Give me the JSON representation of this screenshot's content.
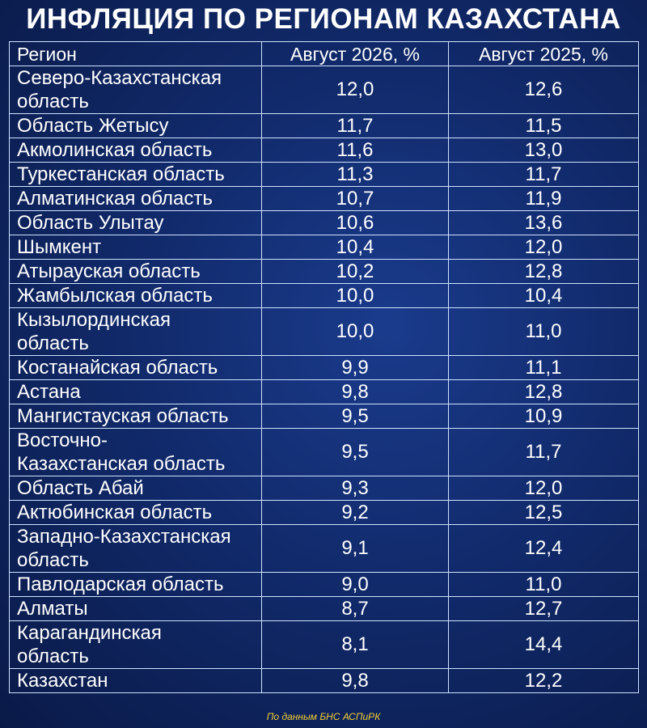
{
  "title": "ИНФЛЯЦИЯ ПО РЕГИОНАМ КАЗАХСТАНА",
  "footnote": "По данным БНС АСПиРК",
  "chart_data": {
    "type": "table",
    "columns": [
      "Регион",
      "Август 2026, %",
      "Август 2025, %"
    ],
    "rows": [
      {
        "region": "Северо-Казахстанская область",
        "region_lines": [
          "Северо-Казахстанская",
          "область"
        ],
        "aug2026": "12,0",
        "aug2025": "12,6"
      },
      {
        "region": "Область Жетысу",
        "region_lines": [
          "Область Жетысу"
        ],
        "aug2026": "11,7",
        "aug2025": "11,5"
      },
      {
        "region": "Акмолинская область",
        "region_lines": [
          "Акмолинская область"
        ],
        "aug2026": "11,6",
        "aug2025": "13,0"
      },
      {
        "region": "Туркестанская область",
        "region_lines": [
          "Туркестанская область"
        ],
        "aug2026": "11,3",
        "aug2025": "11,7"
      },
      {
        "region": "Алматинская область",
        "region_lines": [
          "Алматинская область"
        ],
        "aug2026": "10,7",
        "aug2025": "11,9"
      },
      {
        "region": "Область Улытау",
        "region_lines": [
          "Область Улытау"
        ],
        "aug2026": "10,6",
        "aug2025": "13,6"
      },
      {
        "region": "Шымкент",
        "region_lines": [
          "Шымкент"
        ],
        "aug2026": "10,4",
        "aug2025": "12,0"
      },
      {
        "region": "Атырауская область",
        "region_lines": [
          "Атырауская область"
        ],
        "aug2026": "10,2",
        "aug2025": "12,8"
      },
      {
        "region": "Жамбылская область",
        "region_lines": [
          "Жамбылская область"
        ],
        "aug2026": "10,0",
        "aug2025": "10,4"
      },
      {
        "region": "Кызылординская область",
        "region_lines": [
          "Кызылординская",
          "область"
        ],
        "aug2026": "10,0",
        "aug2025": "11,0"
      },
      {
        "region": "Костанайская область",
        "region_lines": [
          "Костанайская область"
        ],
        "aug2026": "9,9",
        "aug2025": "11,1"
      },
      {
        "region": "Астана",
        "region_lines": [
          "Астана"
        ],
        "aug2026": "9,8",
        "aug2025": "12,8"
      },
      {
        "region": "Мангистауская область",
        "region_lines": [
          "Мангистауская область"
        ],
        "aug2026": "9,5",
        "aug2025": "10,9"
      },
      {
        "region": "Восточно-Казахстанская область",
        "region_lines": [
          "Восточно-",
          "Казахстанская область"
        ],
        "aug2026": "9,5",
        "aug2025": "11,7"
      },
      {
        "region": "Область Абай",
        "region_lines": [
          "Область Абай"
        ],
        "aug2026": "9,3",
        "aug2025": "12,0"
      },
      {
        "region": "Актюбинская область",
        "region_lines": [
          "Актюбинская область"
        ],
        "aug2026": "9,2",
        "aug2025": "12,5"
      },
      {
        "region": "Западно-Казахстанская область",
        "region_lines": [
          "Западно-Казахстанская",
          "область"
        ],
        "aug2026": "9,1",
        "aug2025": "12,4"
      },
      {
        "region": "Павлодарская область",
        "region_lines": [
          "Павлодарская область"
        ],
        "aug2026": "9,0",
        "aug2025": "11,0"
      },
      {
        "region": "Алматы",
        "region_lines": [
          "Алматы"
        ],
        "aug2026": "8,7",
        "aug2025": "12,7"
      },
      {
        "region": "Карагандинская область",
        "region_lines": [
          "Карагандинская",
          "область"
        ],
        "aug2026": "8,1",
        "aug2025": "14,4"
      },
      {
        "region": "Казахстан",
        "region_lines": [
          "Казахстан"
        ],
        "aug2026": "9,8",
        "aug2025": "12,2"
      }
    ]
  }
}
